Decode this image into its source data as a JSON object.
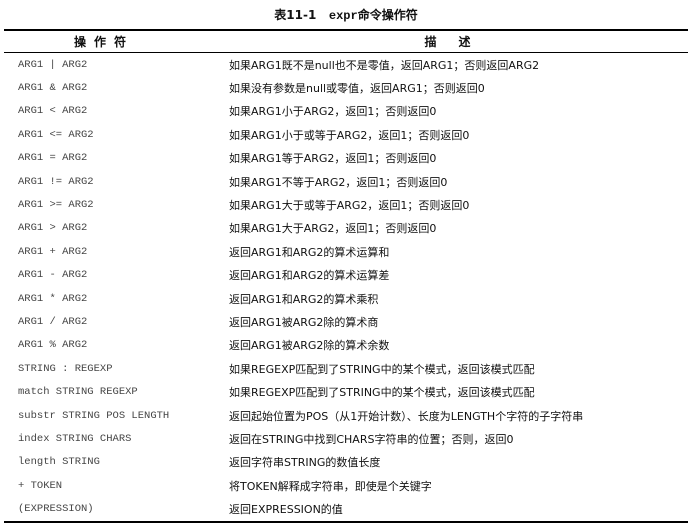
{
  "title": {
    "prefix": "表11-1",
    "cmd": "expr",
    "suffix": "命令操作符"
  },
  "table": {
    "headers": [
      "操作符",
      "描述"
    ],
    "rows": [
      {
        "op": "ARG1 | ARG2",
        "desc": "如果ARG1既不是null也不是零值，返回ARG1；否则返回ARG2"
      },
      {
        "op": "ARG1 & ARG2",
        "desc": "如果没有参数是null或零值，返回ARG1；否则返回0"
      },
      {
        "op": "ARG1 < ARG2",
        "desc": "如果ARG1小于ARG2，返回1；否则返回0"
      },
      {
        "op": "ARG1 <= ARG2",
        "desc": "如果ARG1小于或等于ARG2，返回1；否则返回0"
      },
      {
        "op": "ARG1 = ARG2",
        "desc": "如果ARG1等于ARG2，返回1；否则返回0"
      },
      {
        "op": "ARG1 != ARG2",
        "desc": "如果ARG1不等于ARG2，返回1；否则返回0"
      },
      {
        "op": "ARG1 >= ARG2",
        "desc": "如果ARG1大于或等于ARG2，返回1；否则返回0"
      },
      {
        "op": "ARG1 > ARG2",
        "desc": "如果ARG1大于ARG2，返回1；否则返回0"
      },
      {
        "op": "ARG1 + ARG2",
        "desc": "返回ARG1和ARG2的算术运算和"
      },
      {
        "op": "ARG1 - ARG2",
        "desc": "返回ARG1和ARG2的算术运算差"
      },
      {
        "op": "ARG1 * ARG2",
        "desc": "返回ARG1和ARG2的算术乘积"
      },
      {
        "op": "ARG1 / ARG2",
        "desc": "返回ARG1被ARG2除的算术商"
      },
      {
        "op": "ARG1 % ARG2",
        "desc": "返回ARG1被ARG2除的算术余数"
      },
      {
        "op": "STRING : REGEXP",
        "desc": "如果REGEXP匹配到了STRING中的某个模式，返回该模式匹配"
      },
      {
        "op": "match STRING REGEXP",
        "desc": "如果REGEXP匹配到了STRING中的某个模式，返回该模式匹配"
      },
      {
        "op": "substr STRING POS LENGTH",
        "desc": "返回起始位置为POS（从1开始计数）、长度为LENGTH个字符的子字符串"
      },
      {
        "op": "index STRING CHARS",
        "desc": "返回在STRING中找到CHARS字符串的位置；否则，返回0"
      },
      {
        "op": "length STRING",
        "desc": "返回字符串STRING的数值长度"
      },
      {
        "op": "+ TOKEN",
        "desc": "将TOKEN解释成字符串，即使是个关键字"
      },
      {
        "op": "(EXPRESSION)",
        "desc": "返回EXPRESSION的值"
      }
    ]
  }
}
